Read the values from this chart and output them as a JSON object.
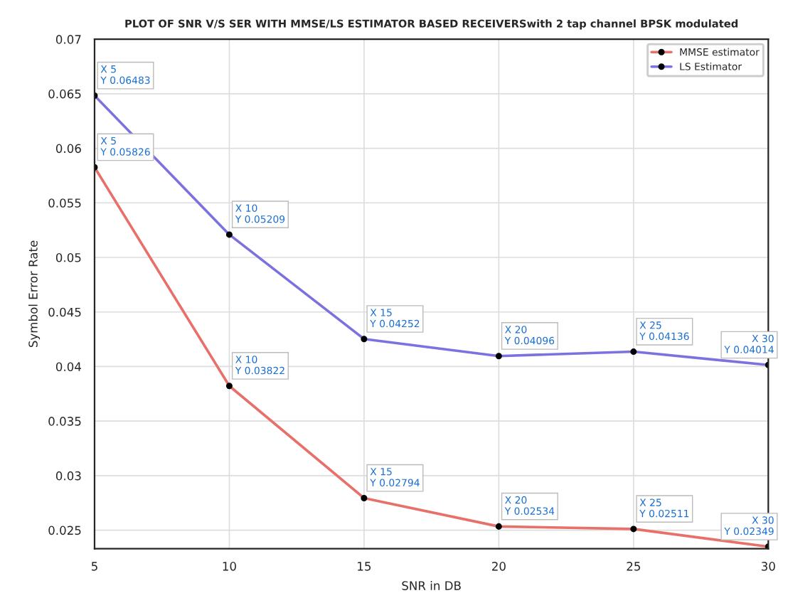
{
  "chart_data": {
    "type": "line",
    "title": "PLOT OF SNR V/S SER WITH MMSE/LS ESTIMATOR BASED RECEIVERSwith 2 tap channel BPSK modulated",
    "xlabel": "SNR in DB",
    "ylabel": "Symbol Error Rate",
    "x": [
      5,
      10,
      15,
      20,
      25,
      30
    ],
    "series": [
      {
        "name": "MMSE estimator",
        "color": "#e8706a",
        "values": [
          0.05826,
          0.03822,
          0.02794,
          0.02534,
          0.02511,
          0.02349
        ]
      },
      {
        "name": "LS Estimator",
        "color": "#7b72e0",
        "values": [
          0.06483,
          0.05209,
          0.04252,
          0.04096,
          0.04136,
          0.04014
        ]
      }
    ],
    "xlim": [
      5,
      30
    ],
    "xticks": [
      5,
      10,
      15,
      20,
      25,
      30
    ],
    "ylim": [
      0.0233,
      0.07
    ],
    "yticks": [
      {
        "value": 0.025,
        "label": "0.025"
      },
      {
        "value": 0.03,
        "label": "0.03"
      },
      {
        "value": 0.035,
        "label": "0.035"
      },
      {
        "value": 0.04,
        "label": "0.04"
      },
      {
        "value": 0.045,
        "label": "0.045"
      },
      {
        "value": 0.05,
        "label": "0.05"
      },
      {
        "value": 0.055,
        "label": "0.055"
      },
      {
        "value": 0.06,
        "label": "0.06"
      },
      {
        "value": 0.065,
        "label": "0.065"
      },
      {
        "value": 0.07,
        "label": "0.07"
      }
    ],
    "grid": true,
    "legend": "top right",
    "marker": "circle",
    "line_style": "solid",
    "annotations": [
      {
        "text": "X 5\nY 0.06483",
        "x": 5,
        "y": 0.06483
      },
      {
        "text": "X 5\nY 0.05826",
        "x": 5,
        "y": 0.05826
      },
      {
        "text": "X 10\nY 0.05209",
        "x": 10,
        "y": 0.05209
      },
      {
        "text": "X 10\nY 0.03822",
        "x": 10,
        "y": 0.03822
      },
      {
        "text": "X 15\nY 0.04252",
        "x": 15,
        "y": 0.04252
      },
      {
        "text": "X 15\nY 0.02794",
        "x": 15,
        "y": 0.02794
      },
      {
        "text": "X 20\nY 0.04096",
        "x": 20,
        "y": 0.04096
      },
      {
        "text": "X 20\nY 0.02534",
        "x": 20,
        "y": 0.02534
      },
      {
        "text": "X 25\nY 0.04136",
        "x": 25,
        "y": 0.04136
      },
      {
        "text": "X 25\nY 0.02511",
        "x": 25,
        "y": 0.02511
      },
      {
        "text": "X 30\nY 0.04014",
        "x": 30,
        "y": 0.04014
      },
      {
        "text": "X 30\nY 0.02349",
        "x": 30,
        "y": 0.02349
      }
    ]
  }
}
